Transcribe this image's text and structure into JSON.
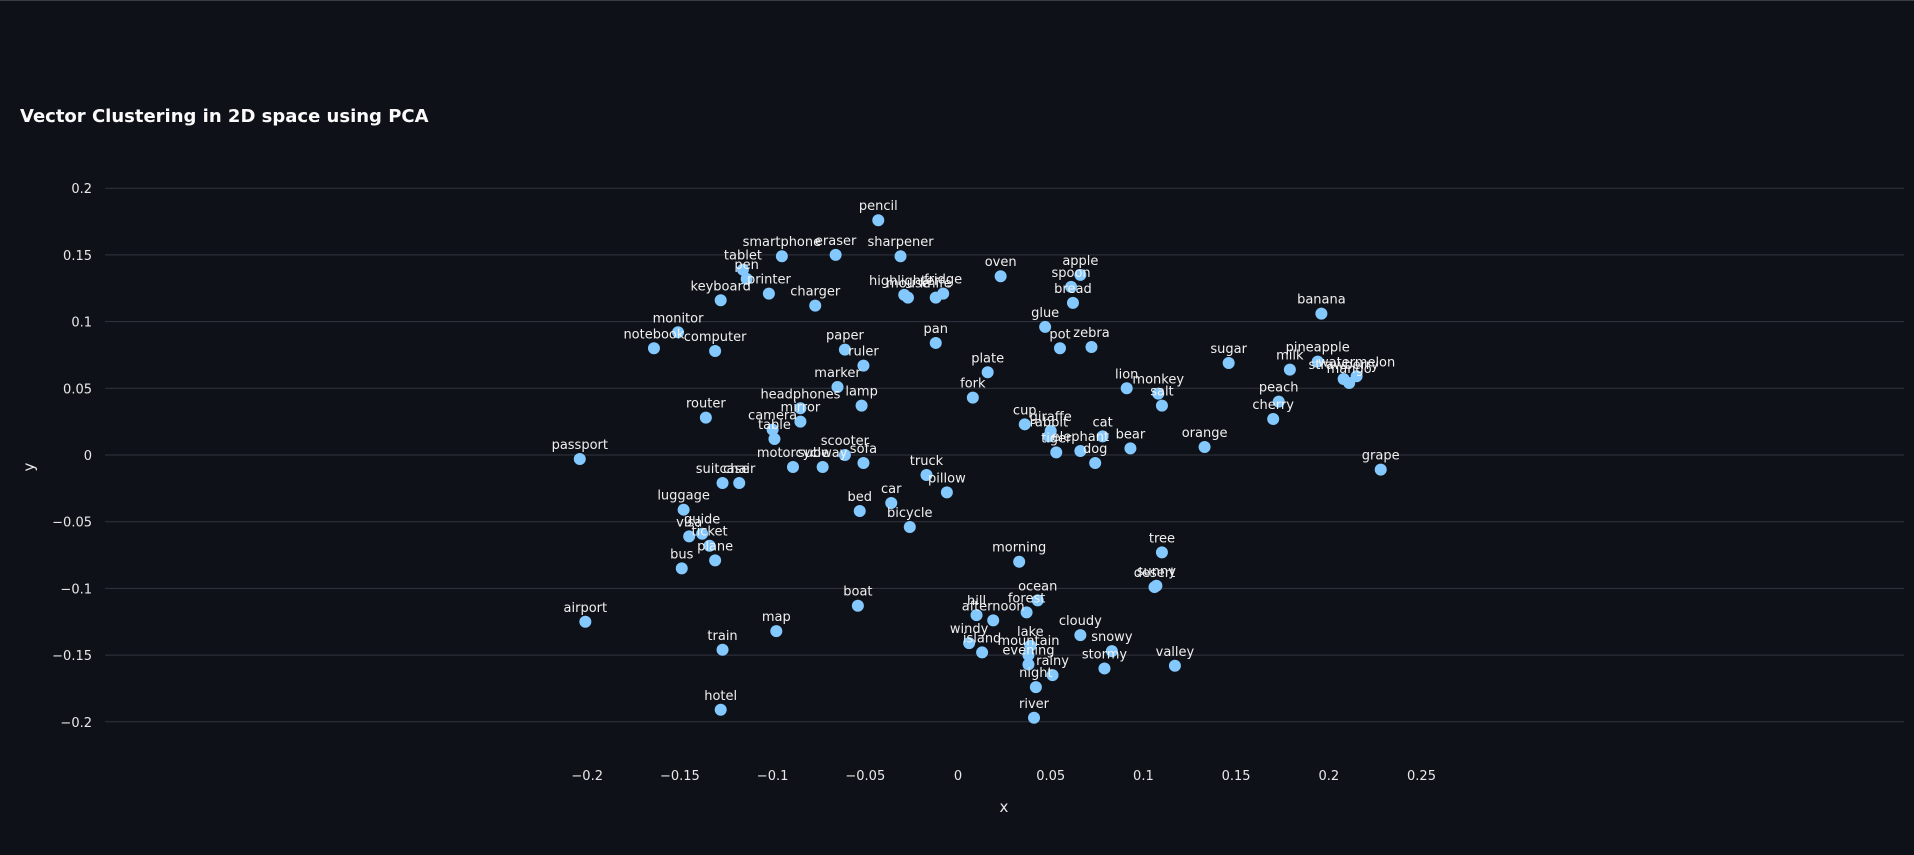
{
  "chart_data": {
    "type": "scatter",
    "title": "Vector Clustering in 2D space using PCA",
    "xlabel": "x",
    "ylabel": "y",
    "xlim": [
      -0.25,
      0.255
    ],
    "ylim": [
      -0.225,
      0.22
    ],
    "x_ticks": [
      -0.2,
      -0.15,
      -0.1,
      -0.05,
      0,
      0.05,
      0.1,
      0.15,
      0.2,
      0.25
    ],
    "x_tick_labels": [
      "−0.2",
      "−0.15",
      "−0.1",
      "−0.05",
      "0",
      "0.05",
      "0.1",
      "0.15",
      "0.2",
      "0.25"
    ],
    "y_ticks": [
      0.2,
      0.15,
      0.1,
      0.05,
      0,
      -0.05,
      -0.1,
      -0.15,
      -0.2
    ],
    "y_tick_labels": [
      "0.2",
      "0.15",
      "0.1",
      "0.05",
      "0",
      "−0.05",
      "−0.1",
      "−0.15",
      "−0.2"
    ],
    "grid": "horizontal",
    "marker_color": "#83c9ff",
    "points": [
      {
        "label": "passport",
        "x": -0.204,
        "y": -0.003
      },
      {
        "label": "airport",
        "x": -0.201,
        "y": -0.125
      },
      {
        "label": "notebook",
        "x": -0.164,
        "y": 0.08
      },
      {
        "label": "monitor",
        "x": -0.151,
        "y": 0.092
      },
      {
        "label": "luggage",
        "x": -0.148,
        "y": -0.041
      },
      {
        "label": "visa",
        "x": -0.145,
        "y": -0.061
      },
      {
        "label": "bus",
        "x": -0.149,
        "y": -0.085
      },
      {
        "label": "guide",
        "x": -0.138,
        "y": -0.059
      },
      {
        "label": "ticket",
        "x": -0.134,
        "y": -0.068
      },
      {
        "label": "plane",
        "x": -0.131,
        "y": -0.079
      },
      {
        "label": "router",
        "x": -0.136,
        "y": 0.028
      },
      {
        "label": "computer",
        "x": -0.131,
        "y": 0.078
      },
      {
        "label": "keyboard",
        "x": -0.128,
        "y": 0.116
      },
      {
        "label": "suitcase",
        "x": -0.127,
        "y": -0.021
      },
      {
        "label": "train",
        "x": -0.127,
        "y": -0.146
      },
      {
        "label": "hotel",
        "x": -0.128,
        "y": -0.191
      },
      {
        "label": "chair",
        "x": -0.118,
        "y": -0.021
      },
      {
        "label": "tablet",
        "x": -0.116,
        "y": 0.139
      },
      {
        "label": "pen",
        "x": -0.114,
        "y": 0.132
      },
      {
        "label": "printer",
        "x": -0.102,
        "y": 0.121
      },
      {
        "label": "camera",
        "x": -0.1,
        "y": 0.019
      },
      {
        "label": "table",
        "x": -0.099,
        "y": 0.012
      },
      {
        "label": "map",
        "x": -0.098,
        "y": -0.132
      },
      {
        "label": "smartphone",
        "x": -0.095,
        "y": 0.149
      },
      {
        "label": "motorcycle",
        "x": -0.089,
        "y": -0.009
      },
      {
        "label": "headphones",
        "x": -0.085,
        "y": 0.035
      },
      {
        "label": "mirror",
        "x": -0.085,
        "y": 0.025
      },
      {
        "label": "charger",
        "x": -0.077,
        "y": 0.112
      },
      {
        "label": "subway",
        "x": -0.073,
        "y": -0.009
      },
      {
        "label": "eraser",
        "x": -0.066,
        "y": 0.15
      },
      {
        "label": "marker",
        "x": -0.065,
        "y": 0.051
      },
      {
        "label": "paper",
        "x": -0.061,
        "y": 0.079
      },
      {
        "label": "scooter",
        "x": -0.061,
        "y": 0.0
      },
      {
        "label": "lamp",
        "x": -0.052,
        "y": 0.037
      },
      {
        "label": "ruler",
        "x": -0.051,
        "y": 0.067
      },
      {
        "label": "sofa",
        "x": -0.051,
        "y": -0.006
      },
      {
        "label": "bed",
        "x": -0.053,
        "y": -0.042
      },
      {
        "label": "boat",
        "x": -0.054,
        "y": -0.113
      },
      {
        "label": "pencil",
        "x": -0.043,
        "y": 0.176
      },
      {
        "label": "car",
        "x": -0.036,
        "y": -0.036
      },
      {
        "label": "sharpener",
        "x": -0.031,
        "y": 0.149
      },
      {
        "label": "highlighter",
        "x": -0.029,
        "y": 0.12
      },
      {
        "label": "mouse",
        "x": -0.027,
        "y": 0.118
      },
      {
        "label": "bicycle",
        "x": -0.026,
        "y": -0.054
      },
      {
        "label": "truck",
        "x": -0.017,
        "y": -0.015
      },
      {
        "label": "knife",
        "x": -0.012,
        "y": 0.118
      },
      {
        "label": "fridge",
        "x": -0.008,
        "y": 0.121
      },
      {
        "label": "pan",
        "x": -0.012,
        "y": 0.084
      },
      {
        "label": "pillow",
        "x": -0.006,
        "y": -0.028
      },
      {
        "label": "fork",
        "x": 0.008,
        "y": 0.043
      },
      {
        "label": "windy",
        "x": 0.006,
        "y": -0.141
      },
      {
        "label": "hill",
        "x": 0.01,
        "y": -0.12
      },
      {
        "label": "island",
        "x": 0.013,
        "y": -0.148
      },
      {
        "label": "plate",
        "x": 0.016,
        "y": 0.062
      },
      {
        "label": "afternoon",
        "x": 0.019,
        "y": -0.124
      },
      {
        "label": "oven",
        "x": 0.023,
        "y": 0.134
      },
      {
        "label": "morning",
        "x": 0.033,
        "y": -0.08
      },
      {
        "label": "cup",
        "x": 0.036,
        "y": 0.023
      },
      {
        "label": "forest",
        "x": 0.037,
        "y": -0.118
      },
      {
        "label": "lake",
        "x": 0.039,
        "y": -0.143
      },
      {
        "label": "mountain",
        "x": 0.038,
        "y": -0.15
      },
      {
        "label": "evening",
        "x": 0.038,
        "y": -0.157
      },
      {
        "label": "night",
        "x": 0.042,
        "y": -0.174
      },
      {
        "label": "river",
        "x": 0.041,
        "y": -0.197
      },
      {
        "label": "ocean",
        "x": 0.043,
        "y": -0.109
      },
      {
        "label": "glue",
        "x": 0.047,
        "y": 0.096
      },
      {
        "label": "giraffe",
        "x": 0.05,
        "y": 0.018
      },
      {
        "label": "rabbit",
        "x": 0.049,
        "y": 0.014
      },
      {
        "label": "tiger",
        "x": 0.053,
        "y": 0.002
      },
      {
        "label": "rainy",
        "x": 0.051,
        "y": -0.165
      },
      {
        "label": "pot",
        "x": 0.055,
        "y": 0.08
      },
      {
        "label": "spoon",
        "x": 0.061,
        "y": 0.126
      },
      {
        "label": "bread",
        "x": 0.062,
        "y": 0.114
      },
      {
        "label": "apple",
        "x": 0.066,
        "y": 0.135
      },
      {
        "label": "elephant",
        "x": 0.066,
        "y": 0.003
      },
      {
        "label": "cloudy",
        "x": 0.066,
        "y": -0.135
      },
      {
        "label": "zebra",
        "x": 0.072,
        "y": 0.081
      },
      {
        "label": "dog",
        "x": 0.074,
        "y": -0.006
      },
      {
        "label": "cat",
        "x": 0.078,
        "y": 0.014
      },
      {
        "label": "stormy",
        "x": 0.079,
        "y": -0.16
      },
      {
        "label": "snowy",
        "x": 0.083,
        "y": -0.147
      },
      {
        "label": "lion",
        "x": 0.091,
        "y": 0.05
      },
      {
        "label": "bear",
        "x": 0.093,
        "y": 0.005
      },
      {
        "label": "desert",
        "x": 0.106,
        "y": -0.099
      },
      {
        "label": "sunny",
        "x": 0.107,
        "y": -0.098
      },
      {
        "label": "monkey",
        "x": 0.108,
        "y": 0.046
      },
      {
        "label": "salt",
        "x": 0.11,
        "y": 0.037
      },
      {
        "label": "tree",
        "x": 0.11,
        "y": -0.073
      },
      {
        "label": "valley",
        "x": 0.117,
        "y": -0.158
      },
      {
        "label": "orange",
        "x": 0.133,
        "y": 0.006
      },
      {
        "label": "sugar",
        "x": 0.146,
        "y": 0.069
      },
      {
        "label": "cherry",
        "x": 0.17,
        "y": 0.027
      },
      {
        "label": "peach",
        "x": 0.173,
        "y": 0.04
      },
      {
        "label": "milk",
        "x": 0.179,
        "y": 0.064
      },
      {
        "label": "pineapple",
        "x": 0.194,
        "y": 0.07
      },
      {
        "label": "banana",
        "x": 0.196,
        "y": 0.106
      },
      {
        "label": "strawberry",
        "x": 0.208,
        "y": 0.057
      },
      {
        "label": "mango",
        "x": 0.211,
        "y": 0.054
      },
      {
        "label": "watermelon",
        "x": 0.215,
        "y": 0.059
      },
      {
        "label": "grape",
        "x": 0.228,
        "y": -0.011
      }
    ]
  }
}
